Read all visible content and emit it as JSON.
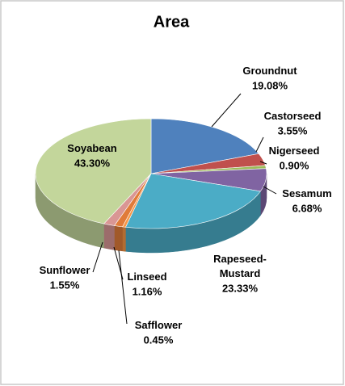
{
  "chart_data": {
    "type": "pie3d",
    "title": "Area",
    "categories": [
      "Groundnut",
      "Castorseed",
      "Nigerseed",
      "Sesamum",
      "Rapeseed-Mustard",
      "Safflower",
      "Linseed",
      "Sunflower",
      "Soyabean"
    ],
    "values": [
      19.08,
      3.55,
      0.9,
      6.68,
      23.33,
      0.45,
      1.16,
      1.55,
      43.3
    ],
    "value_labels": [
      "19.08%",
      "3.55%",
      "0.90%",
      "6.68%",
      "23.33%",
      "0.45%",
      "1.16%",
      "1.55%",
      "43.30%"
    ],
    "colors": [
      "#4f81bd",
      "#c0504d",
      "#9bbb59",
      "#8064a2",
      "#4bacc6",
      "#f79646",
      "#e07b39",
      "#d99694",
      "#c3d69b"
    ]
  }
}
